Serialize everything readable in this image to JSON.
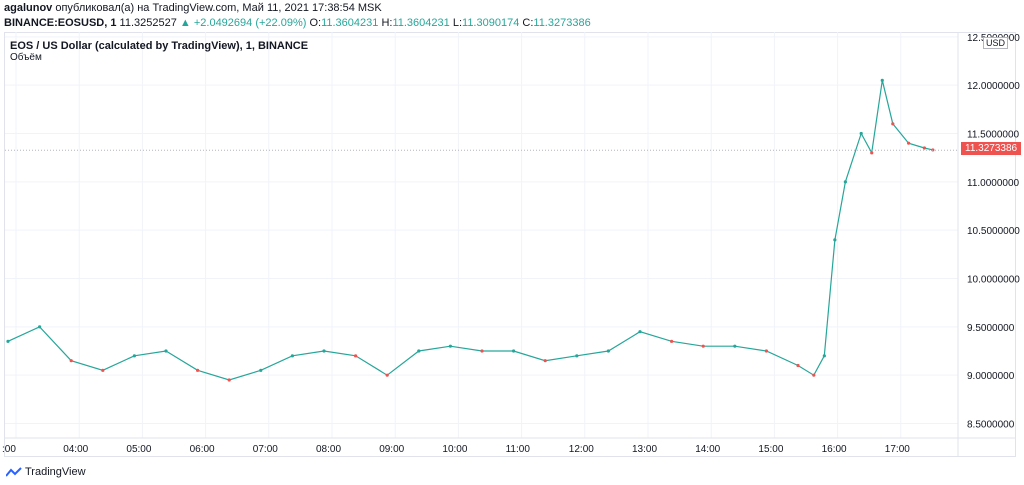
{
  "header": {
    "author": "agalunov",
    "published_text": "опубликовал(а) на TradingView.com, Май 11, 2021 17:38:54 MSK",
    "symbol": "BINANCE:EOSUSD, 1",
    "price": "11.3252527",
    "change": "▲ +2.0492694 (+22.09%)",
    "o_label": "O:",
    "o_value": "11.3604231",
    "h_label": "H:",
    "h_value": "11.3604231",
    "l_label": "L:",
    "l_value": "11.3090174",
    "c_label": "C:",
    "c_value": "11.3273386"
  },
  "chart_title": "EOS / US Dollar (calculated by TradingView), 1, BINANCE",
  "volume_label": "Объём",
  "currency_badge": "USD",
  "last_price_badge": "11.3273386",
  "footer": {
    "brand": "TradingView"
  },
  "colors": {
    "up": "#26a69a",
    "down": "#ef5350"
  },
  "chart_data": {
    "type": "line",
    "title": "EOS / US Dollar (calculated by TradingView), 1, BINANCE",
    "xlabel": "",
    "ylabel": "",
    "x": [
      "03:00",
      "03:30",
      "04:00",
      "04:30",
      "05:00",
      "05:30",
      "06:00",
      "06:30",
      "07:00",
      "07:30",
      "08:00",
      "08:30",
      "09:00",
      "09:30",
      "10:00",
      "10:30",
      "11:00",
      "11:30",
      "12:00",
      "12:30",
      "13:00",
      "13:30",
      "14:00",
      "14:30",
      "15:00",
      "15:30",
      "15:45",
      "15:55",
      "16:05",
      "16:15",
      "16:30",
      "16:40",
      "16:50",
      "17:00",
      "17:15",
      "17:30",
      "17:38"
    ],
    "series": [
      {
        "values": [
          9.35,
          9.5,
          9.15,
          9.05,
          9.2,
          9.25,
          9.05,
          8.95,
          9.05,
          9.2,
          9.25,
          9.2,
          9.0,
          9.25,
          9.3,
          9.25,
          9.25,
          9.15,
          9.2,
          9.25,
          9.45,
          9.35,
          9.3,
          9.3,
          9.25,
          9.1,
          9.0,
          9.2,
          10.4,
          11.0,
          11.5,
          11.3,
          12.05,
          11.6,
          11.4,
          11.35,
          11.33
        ]
      }
    ],
    "xticks": [
      ":00",
      "04:00",
      "05:00",
      "06:00",
      "07:00",
      "08:00",
      "09:00",
      "10:00",
      "11:00",
      "12:00",
      "13:00",
      "14:00",
      "15:00",
      "16:00",
      "17:00"
    ],
    "yticks": [
      "12.5000000",
      "12.0000000",
      "11.5000000",
      "11.0000000",
      "10.5000000",
      "10.0000000",
      "9.5000000",
      "9.0000000",
      "8.5000000"
    ],
    "ylim": [
      8.35,
      12.55
    ],
    "last_price": 11.3273386,
    "grid": true,
    "legend": "none"
  }
}
